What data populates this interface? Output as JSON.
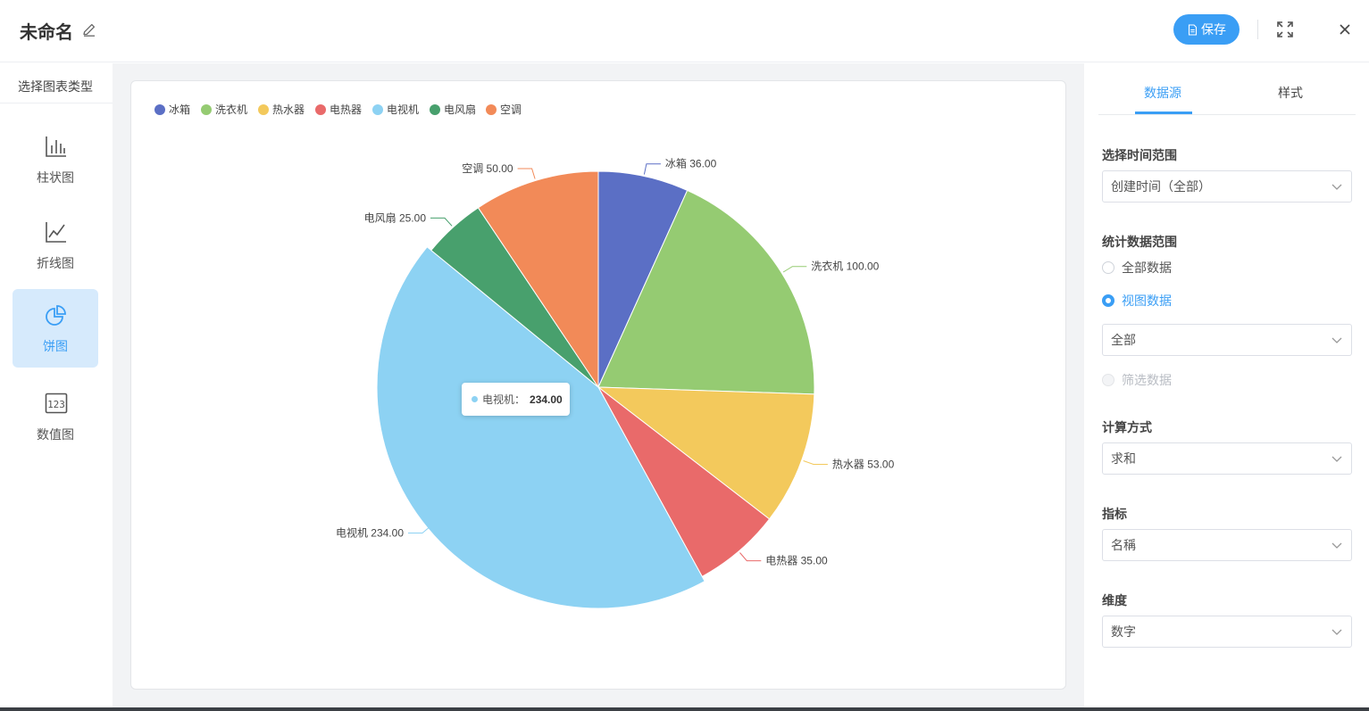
{
  "header": {
    "title": "未命名",
    "save_label": "保存",
    "accent": "#3a9ef5"
  },
  "sidebar": {
    "title": "选择图表类型",
    "items": [
      {
        "label": "柱状图",
        "icon": "bar-chart-icon",
        "active": false
      },
      {
        "label": "折线图",
        "icon": "line-chart-icon",
        "active": false
      },
      {
        "label": "饼图",
        "icon": "pie-chart-icon",
        "active": true
      },
      {
        "label": "数值图",
        "icon": "number-icon",
        "active": false
      }
    ]
  },
  "chart_data": {
    "type": "pie",
    "title": "",
    "legend": {
      "placement": "top-left"
    },
    "slices": [
      {
        "name": "冰箱",
        "value": 36.0,
        "label": "36.00",
        "color": "#5b6fc5"
      },
      {
        "name": "洗衣机",
        "value": 100.0,
        "label": "100.00",
        "color": "#95cb72"
      },
      {
        "name": "热水器",
        "value": 53.0,
        "label": "53.00",
        "color": "#f3c95c"
      },
      {
        "name": "电热器",
        "value": 35.0,
        "label": "35.00",
        "color": "#e96a6a"
      },
      {
        "name": "电视机",
        "value": 234.0,
        "label": "234.00",
        "color": "#8dd2f3",
        "highlighted": true
      },
      {
        "name": "电风扇",
        "value": 25.0,
        "label": "25.00",
        "color": "#48a06d"
      },
      {
        "name": "空调",
        "value": 50.0,
        "label": "50.00",
        "color": "#f28a58"
      }
    ]
  },
  "tooltip": {
    "name": "电视机：",
    "value": "234.00"
  },
  "right_panel": {
    "tabs": [
      {
        "label": "数据源",
        "active": true
      },
      {
        "label": "样式",
        "active": false
      }
    ],
    "time_range": {
      "label": "选择时间范围",
      "value": "创建时间（全部）"
    },
    "data_range": {
      "label": "统计数据范围",
      "options": [
        {
          "label": "全部数据",
          "state": "unchecked"
        },
        {
          "label": "视图数据",
          "state": "checked"
        },
        {
          "label": "筛选数据",
          "state": "disabled"
        }
      ],
      "view_select": "全部"
    },
    "calc": {
      "label": "计算方式",
      "value": "求和"
    },
    "metric": {
      "label": "指标",
      "value": "名稱"
    },
    "dimension": {
      "label": "维度",
      "value": "数字"
    }
  }
}
